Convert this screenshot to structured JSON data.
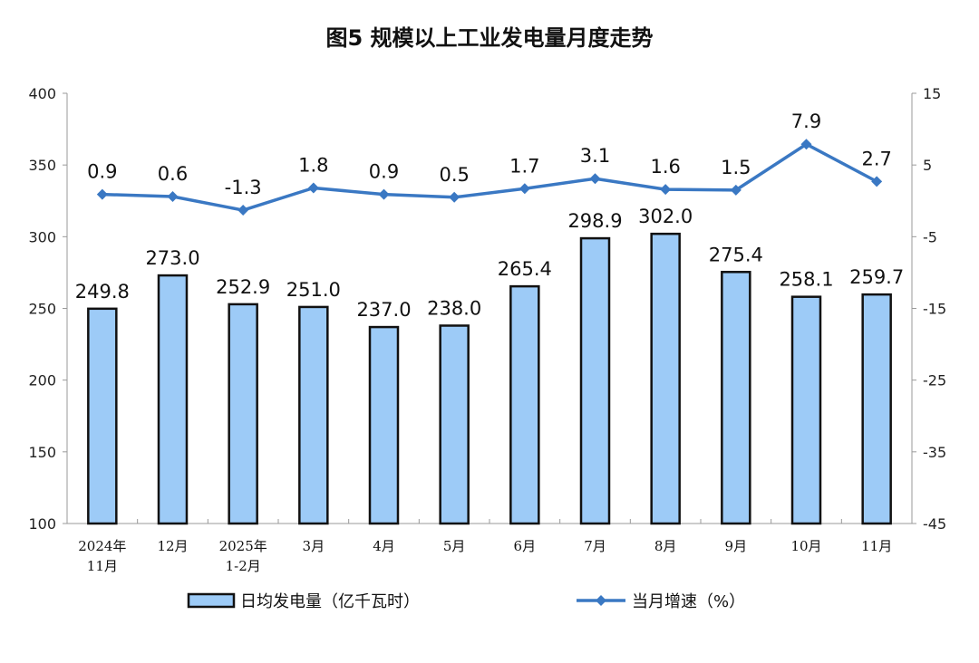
{
  "chart_data": {
    "type": "bar+line",
    "title": "图5  规模以上工业发电量月度走势",
    "categories": [
      [
        "2024年",
        "11月"
      ],
      [
        "12月"
      ],
      [
        "2025年",
        "1-2月"
      ],
      [
        "3月"
      ],
      [
        "4月"
      ],
      [
        "5月"
      ],
      [
        "6月"
      ],
      [
        "7月"
      ],
      [
        "8月"
      ],
      [
        "9月"
      ],
      [
        "10月"
      ],
      [
        "11月"
      ]
    ],
    "series": [
      {
        "name": "日均发电量（亿千瓦时）",
        "type": "bar",
        "axis": "left",
        "values": [
          249.8,
          273.0,
          252.9,
          251.0,
          237.0,
          238.0,
          265.4,
          298.9,
          302.0,
          275.4,
          258.1,
          259.7
        ],
        "labels": [
          "249.8",
          "273.0",
          "252.9",
          "251.0",
          "237.0",
          "238.0",
          "265.4",
          "298.9",
          "302.0",
          "275.4",
          "258.1",
          "259.7"
        ],
        "color": "#9dcbf7",
        "edge": "#111111"
      },
      {
        "name": "当月增速（%）",
        "type": "line",
        "axis": "right",
        "values": [
          0.9,
          0.6,
          -1.3,
          1.8,
          0.9,
          0.5,
          1.7,
          3.1,
          1.6,
          1.5,
          7.9,
          2.7
        ],
        "labels": [
          "0.9",
          "0.6",
          "-1.3",
          "1.8",
          "0.9",
          "0.5",
          "1.7",
          "3.1",
          "1.6",
          "1.5",
          "7.9",
          "2.7"
        ],
        "color": "#3a78c3"
      }
    ],
    "y_left": {
      "lim": [
        100,
        400
      ],
      "ticks": [
        "100",
        "150",
        "200",
        "250",
        "300",
        "350",
        "400"
      ]
    },
    "y_right": {
      "lim": [
        -45,
        15
      ],
      "ticks": [
        "-45",
        "-35",
        "-25",
        "-15",
        "-5",
        "5",
        "15"
      ]
    },
    "grid": false,
    "legend": "bottom"
  }
}
